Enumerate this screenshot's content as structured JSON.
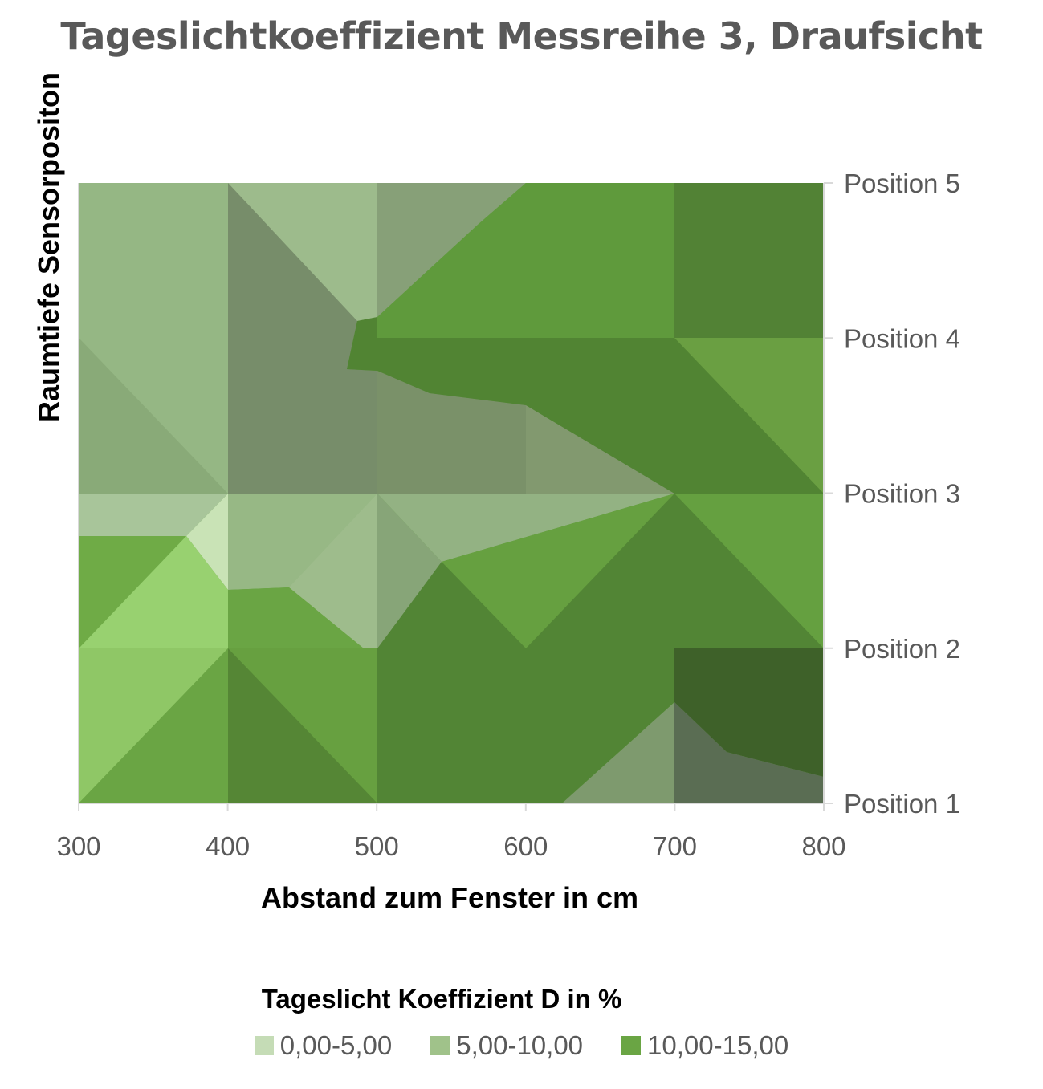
{
  "chart_data": {
    "type": "contour",
    "title": "Tageslichtkoeffizient Messreihe 3, Draufsicht",
    "xlabel": "Abstand zum Fenster in cm",
    "ylabel": "Raumtiefe Sensorpositon",
    "x_ticks": [
      "300",
      "400",
      "500",
      "600",
      "700",
      "800"
    ],
    "y_ticks": [
      "Position 1",
      "Position 2",
      "Position 3",
      "Position 4",
      "Position 5"
    ],
    "x": [
      300,
      400,
      500,
      600,
      700,
      800
    ],
    "y": [
      1,
      2,
      3,
      4,
      5
    ],
    "legend_title": "Tageslicht Koeffizient D in %",
    "legend": [
      {
        "label": "0,00-5,00",
        "color": "#c5dcb6"
      },
      {
        "label": "5,00-10,00",
        "color": "#a0c28a"
      },
      {
        "label": "10,00-15,00",
        "color": "#6aa544"
      }
    ]
  }
}
